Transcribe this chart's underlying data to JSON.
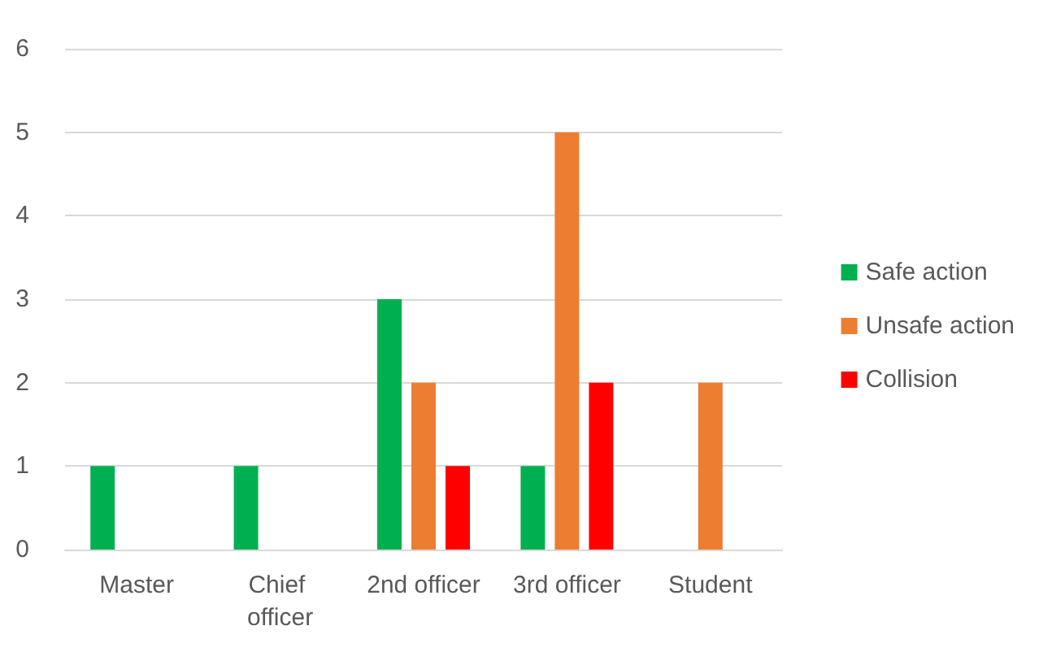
{
  "chart_data": {
    "type": "bar",
    "categories": [
      "Master",
      "Chief officer",
      "2nd officer",
      "3rd officer",
      "Student"
    ],
    "series": [
      {
        "name": "Safe action",
        "color": "#00b050",
        "values": [
          1,
          1,
          3,
          1,
          0
        ]
      },
      {
        "name": "Unsafe action",
        "color": "#ed7d31",
        "values": [
          0,
          0,
          2,
          5,
          2
        ]
      },
      {
        "name": "Collision",
        "color": "#ff0000",
        "values": [
          0,
          0,
          1,
          2,
          0
        ]
      }
    ],
    "ylim": [
      0,
      6
    ],
    "yticks": [
      0,
      1,
      2,
      3,
      4,
      5,
      6
    ],
    "grid": "y",
    "legend": "right"
  }
}
